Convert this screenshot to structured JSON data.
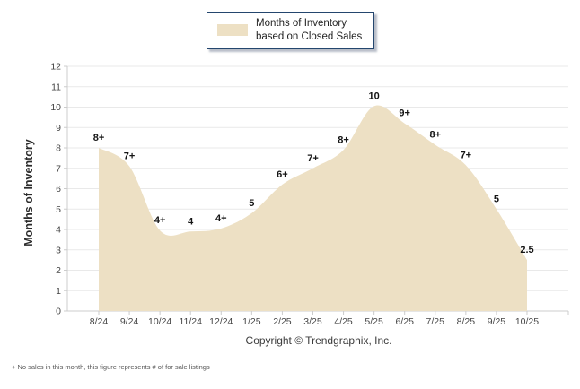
{
  "legend": {
    "label": "Months of Inventory based on Closed Sales",
    "swatch_color": "#ede0c4"
  },
  "copyright": "Copyright © Trendgraphix, Inc.",
  "footnote": "+ No sales in this month, this figure represents # of for sale listings",
  "colors": {
    "area_fill": "#ede0c4",
    "gridline": "#e9e9e9",
    "axis_line": "#cccccc",
    "tick_text": "#454545",
    "data_label": "#141414",
    "legend_border": "#24466e"
  },
  "chart_data": {
    "type": "area",
    "title": "Months of Inventory based on Closed Sales",
    "ylabel": "Months of Inventory",
    "xlabel": "",
    "x": [
      "8/24",
      "9/24",
      "10/24",
      "11/24",
      "12/24",
      "1/25",
      "2/25",
      "3/25",
      "4/25",
      "5/25",
      "6/25",
      "7/25",
      "8/25",
      "9/25",
      "10/25"
    ],
    "values": [
      8.0,
      7.1,
      3.95,
      3.9,
      4.05,
      4.8,
      6.2,
      7.0,
      7.9,
      10.05,
      9.2,
      8.15,
      7.15,
      5.0,
      2.5
    ],
    "point_labels": [
      "8+",
      "7+",
      "4+",
      "4",
      "4+",
      "5",
      "6+",
      "7+",
      "8+",
      "10",
      "9+",
      "8+",
      "7+",
      "5",
      "2.5"
    ],
    "ylim": [
      0,
      12
    ],
    "y_ticks": [
      0,
      1,
      2,
      3,
      4,
      5,
      6,
      7,
      8,
      9,
      10,
      11,
      12
    ],
    "grid": true,
    "smooth": true,
    "legend_position": "top-center"
  }
}
